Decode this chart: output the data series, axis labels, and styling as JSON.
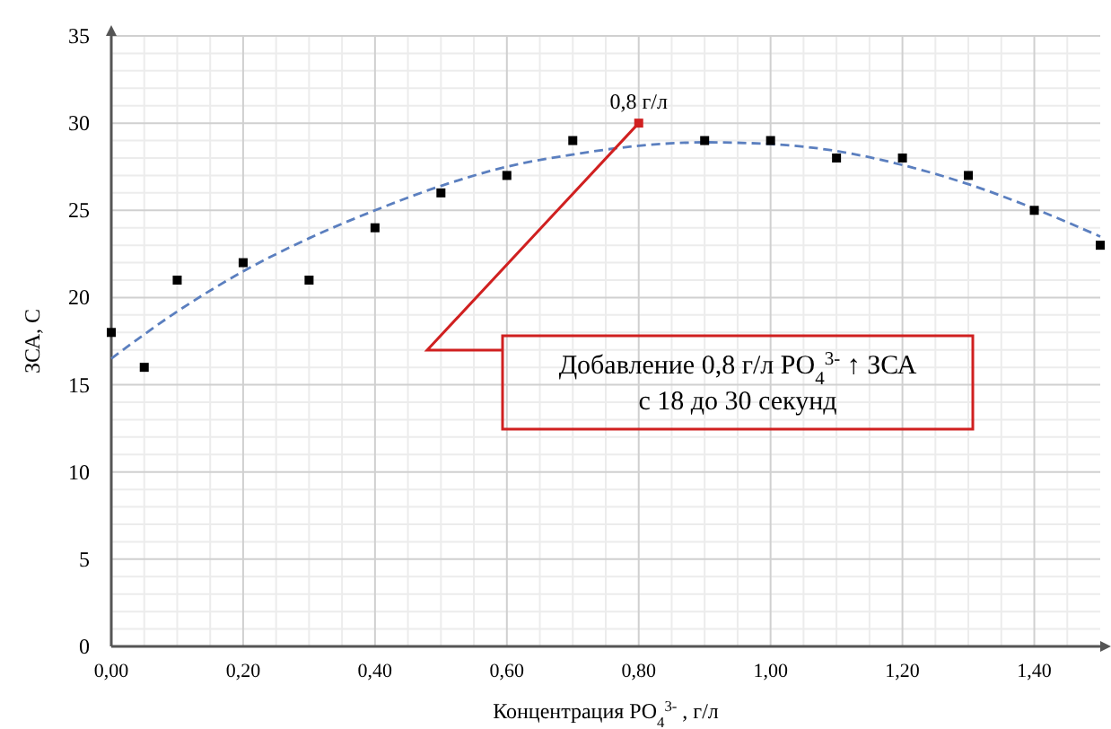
{
  "chart_data": {
    "type": "scatter",
    "xlabel": "Концентрация PO$_{4}$$^{3-}$ , г/л",
    "ylabel": "ЗСА, С",
    "xlim": [
      0,
      1.5
    ],
    "ylim": [
      0,
      35
    ],
    "xticks": [
      {
        "value": 0,
        "label": "0,00"
      },
      {
        "value": 0.2,
        "label": "0,20"
      },
      {
        "value": 0.4,
        "label": "0,40"
      },
      {
        "value": 0.6,
        "label": "0,60"
      },
      {
        "value": 0.8,
        "label": "0,80"
      },
      {
        "value": 1,
        "label": "1,00"
      },
      {
        "value": 1.2,
        "label": "1,20"
      },
      {
        "value": 1.4,
        "label": "1,40"
      }
    ],
    "yticks": [
      0,
      5,
      10,
      15,
      20,
      25,
      30,
      35
    ],
    "grid": true,
    "marker": "square",
    "series": [
      {
        "type": "line",
        "color": "#5b7fbf",
        "line_style": "dashed",
        "marker": "none",
        "x": [
          0,
          0.1,
          0.2,
          0.3,
          0.4,
          0.5,
          0.6,
          0.7,
          0.8,
          0.9,
          1.0,
          1.1,
          1.2,
          1.3,
          1.4,
          1.5
        ],
        "values": [
          16.5,
          19.2,
          21.5,
          23.4,
          25,
          26.4,
          27.5,
          28.2,
          28.7,
          28.9,
          28.8,
          28.4,
          27.6,
          26.5,
          25.1,
          23.5
        ]
      },
      {
        "x": [
          0,
          0.05,
          0.1,
          0.2,
          0.3,
          0.4,
          0.5,
          0.6,
          0.7,
          0.8,
          0.9,
          1.0,
          1.1,
          1.2,
          1.3,
          1.4,
          1.5
        ],
        "values": [
          18,
          16,
          21,
          22,
          21,
          24,
          26,
          27,
          29,
          30,
          29,
          29,
          28,
          28,
          27,
          25,
          23
        ],
        "colors": [
          "#000000",
          "#000000",
          "#000000",
          "#000000",
          "#000000",
          "#000000",
          "#000000",
          "#000000",
          "#000000",
          "#d02020",
          "#000000",
          "#000000",
          "#000000",
          "#000000",
          "#000000",
          "#000000",
          "#000000"
        ]
      }
    ],
    "annotations": [
      {
        "text": "0,8 г/л",
        "x": 0.8,
        "y": 30
      },
      "Добавление 0,8 г/л PO$_{4}$$^{3-}$ ↑ ЗСА\nс 18 до 30 секунд"
    ]
  }
}
